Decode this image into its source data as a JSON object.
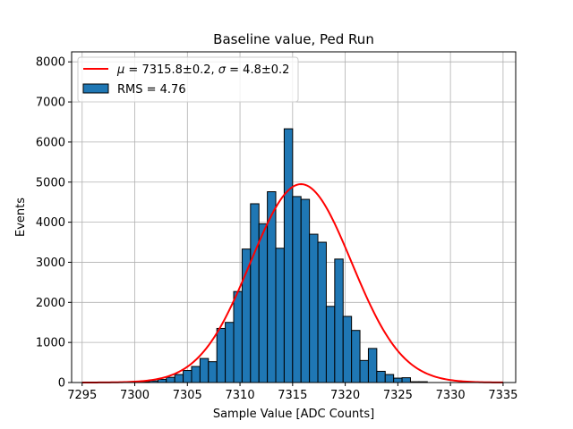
{
  "chart_data": {
    "type": "histogram",
    "title": "Baseline value, Ped Run",
    "xlabel": "Sample Value [ADC Counts]",
    "ylabel": "Events",
    "xlim": [
      7294.0,
      7336.2
    ],
    "ylim": [
      0,
      8250
    ],
    "xticks": [
      7295,
      7300,
      7305,
      7310,
      7315,
      7320,
      7325,
      7330,
      7335
    ],
    "yticks": [
      0,
      1000,
      2000,
      3000,
      4000,
      5000,
      6000,
      7000,
      8000
    ],
    "grid": true,
    "legend_position": "top-left",
    "bin_width": 0.8,
    "bin_start": 7300.6,
    "bar_color": "#1f77b4",
    "fit_color": "#ff0000",
    "series": [
      {
        "name": "RMS = 4.76",
        "kind": "bars",
        "values": [
          20,
          40,
          80,
          130,
          200,
          300,
          400,
          600,
          520,
          1350,
          1500,
          2270,
          3330,
          4460,
          3960,
          4760,
          3350,
          6330,
          4640,
          4570,
          3700,
          3500,
          1900,
          3080,
          1650,
          1300,
          550,
          850,
          280,
          200,
          110,
          120,
          20,
          20
        ]
      },
      {
        "name": "μ = 7315.8±0.2, σ = 4.8±0.2",
        "kind": "gaussian",
        "mean": 7315.8,
        "sigma": 4.8,
        "amplitude": 4950,
        "range": [
          7295,
          7335
        ]
      }
    ],
    "legend": {
      "fit_label_mu": "μ",
      "fit_label_mu_value": " = 7315.8±0.2, ",
      "fit_label_sigma": "σ",
      "fit_label_sigma_value": " = 4.8±0.2",
      "hist_label": "RMS = 4.76"
    }
  }
}
